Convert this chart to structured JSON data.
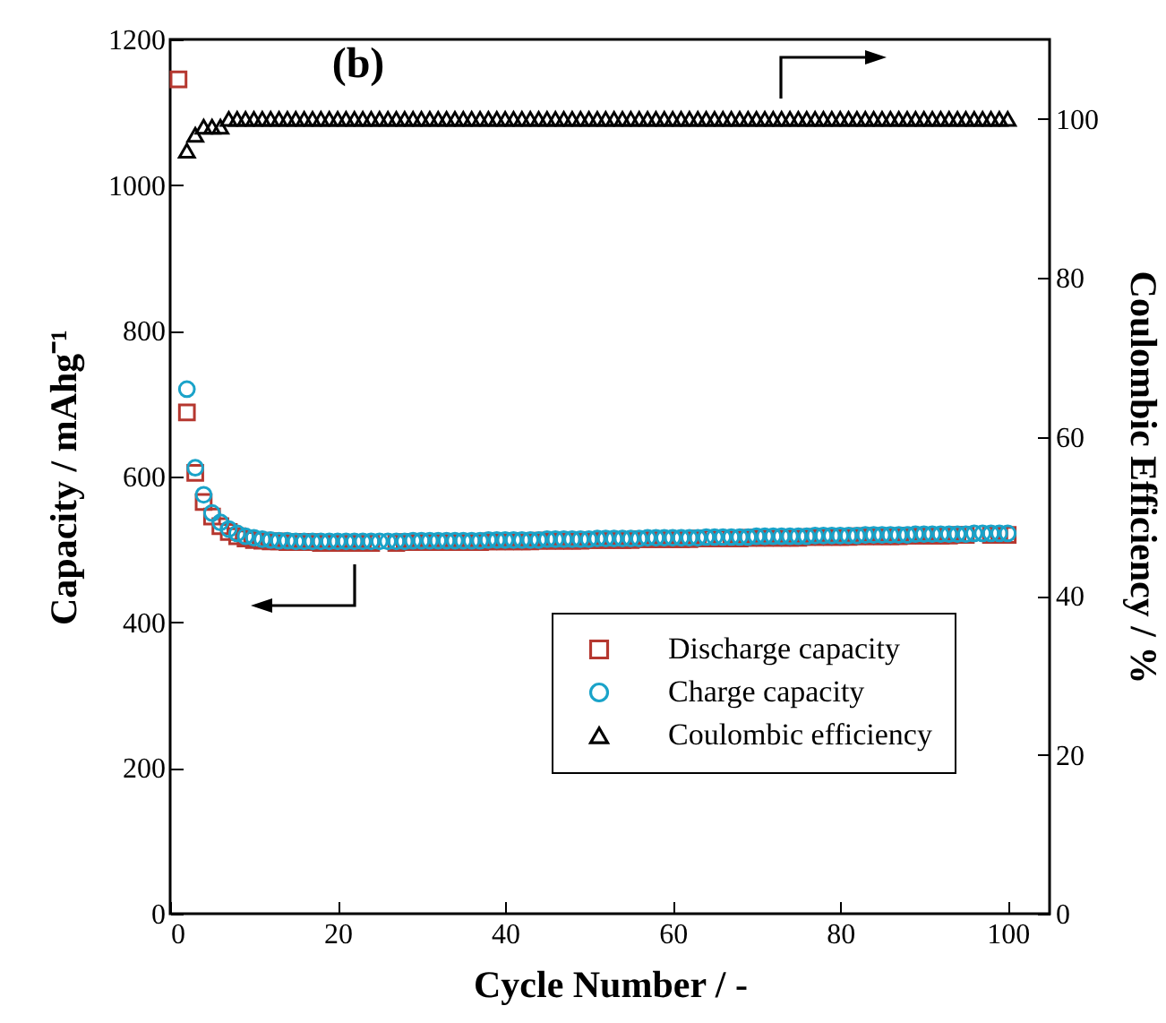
{
  "chart_data": {
    "type": "scatter",
    "xlabel": "Cycle Number / -",
    "ylabel": "Capacity / mAhg⁻¹",
    "y2label": "Coulombic Efficiency / %",
    "annotations": [
      "(b)"
    ],
    "xlim": [
      0,
      105
    ],
    "xticks": [
      0,
      20,
      40,
      60,
      80,
      100
    ],
    "ylim": [
      0,
      1200
    ],
    "yticks": [
      0,
      200,
      400,
      600,
      800,
      1000,
      1200
    ],
    "y2lim": [
      0,
      110
    ],
    "y2ticks": [
      0,
      20,
      40,
      60,
      80,
      100
    ],
    "grid": false,
    "legend": "bottom right",
    "series": [
      {
        "name": "Discharge capacity",
        "color": "#b5372f",
        "marker": "square",
        "x": [
          1,
          2,
          3,
          4,
          5,
          6,
          7,
          8,
          9,
          10,
          11,
          12,
          13,
          14,
          15,
          16,
          17,
          18,
          19,
          20,
          21,
          22,
          23,
          24,
          27,
          28,
          29,
          30,
          31,
          32,
          33,
          34,
          35,
          36,
          37,
          38,
          39,
          40,
          41,
          42,
          43,
          44,
          45,
          46,
          47,
          48,
          49,
          50,
          51,
          52,
          53,
          54,
          55,
          56,
          57,
          58,
          59,
          60,
          61,
          62,
          63,
          64,
          66,
          67,
          68,
          69,
          70,
          71,
          72,
          73,
          74,
          75,
          76,
          77,
          78,
          79,
          80,
          81,
          82,
          83,
          84,
          85,
          86,
          87,
          88,
          89,
          90,
          91,
          92,
          93,
          94,
          95,
          98,
          99,
          100
        ],
        "values": [
          1145,
          688,
          605,
          565,
          545,
          532,
          524,
          518,
          515,
          513,
          512,
          511,
          511,
          510,
          510,
          510,
          510,
          509,
          509,
          509,
          509,
          509,
          509,
          509,
          509,
          510,
          510,
          510,
          510,
          510,
          510,
          510,
          510,
          510,
          510,
          511,
          511,
          511,
          511,
          511,
          511,
          512,
          512,
          512,
          512,
          512,
          512,
          513,
          513,
          513,
          513,
          513,
          513,
          514,
          514,
          514,
          514,
          514,
          514,
          514,
          515,
          515,
          515,
          515,
          515,
          516,
          516,
          516,
          516,
          516,
          516,
          516,
          517,
          517,
          517,
          517,
          517,
          517,
          518,
          518,
          518,
          518,
          518,
          518,
          519,
          519,
          519,
          519,
          519,
          519,
          520,
          520,
          520,
          520,
          520
        ]
      },
      {
        "name": "Charge capacity",
        "color": "#1aa3c9",
        "marker": "circle",
        "x": [
          2,
          3,
          4,
          5,
          6,
          7,
          8,
          9,
          10,
          11,
          12,
          13,
          14,
          15,
          16,
          17,
          18,
          19,
          20,
          21,
          22,
          23,
          24,
          25,
          26,
          27,
          28,
          29,
          30,
          31,
          32,
          33,
          34,
          35,
          36,
          37,
          38,
          39,
          40,
          41,
          42,
          43,
          44,
          45,
          46,
          47,
          48,
          49,
          50,
          51,
          52,
          53,
          54,
          55,
          56,
          57,
          58,
          59,
          60,
          61,
          62,
          63,
          64,
          65,
          66,
          67,
          68,
          69,
          70,
          71,
          72,
          73,
          74,
          75,
          76,
          77,
          78,
          79,
          80,
          81,
          82,
          83,
          84,
          85,
          86,
          87,
          88,
          89,
          90,
          91,
          92,
          93,
          94,
          95,
          96,
          97,
          98,
          99,
          100
        ],
        "values": [
          720,
          612,
          575,
          550,
          537,
          528,
          522,
          518,
          516,
          514,
          513,
          512,
          512,
          511,
          511,
          511,
          511,
          511,
          511,
          511,
          511,
          511,
          511,
          511,
          511,
          511,
          511,
          512,
          512,
          512,
          512,
          512,
          512,
          512,
          512,
          512,
          513,
          513,
          513,
          513,
          513,
          513,
          513,
          514,
          514,
          514,
          514,
          514,
          514,
          515,
          515,
          515,
          515,
          515,
          515,
          516,
          516,
          516,
          516,
          516,
          516,
          516,
          517,
          517,
          517,
          517,
          517,
          517,
          518,
          518,
          518,
          518,
          518,
          518,
          518,
          519,
          519,
          519,
          519,
          519,
          519,
          520,
          520,
          520,
          520,
          520,
          520,
          521,
          521,
          521,
          521,
          521,
          521,
          521,
          522,
          522,
          522,
          522,
          522
        ]
      },
      {
        "name": "Coulombic efficiency",
        "color": "#000000",
        "marker": "triangle",
        "axis": "y2",
        "x": [
          2,
          3,
          4,
          5,
          6,
          7,
          8,
          9,
          10,
          11,
          12,
          13,
          14,
          15,
          16,
          17,
          18,
          19,
          20,
          21,
          22,
          23,
          24,
          25,
          26,
          27,
          28,
          29,
          30,
          31,
          32,
          33,
          34,
          35,
          36,
          37,
          38,
          39,
          40,
          41,
          42,
          43,
          44,
          45,
          46,
          47,
          48,
          49,
          50,
          51,
          52,
          53,
          54,
          55,
          56,
          57,
          58,
          59,
          60,
          61,
          62,
          63,
          64,
          65,
          66,
          67,
          68,
          69,
          70,
          71,
          72,
          73,
          74,
          75,
          76,
          77,
          78,
          79,
          80,
          81,
          82,
          83,
          84,
          85,
          86,
          87,
          88,
          89,
          90,
          91,
          92,
          93,
          94,
          95,
          96,
          97,
          98,
          99,
          100
        ],
        "values": [
          96,
          98,
          99,
          99,
          99,
          100,
          100,
          100,
          100,
          100,
          100,
          100,
          100,
          100,
          100,
          100,
          100,
          100,
          100,
          100,
          100,
          100,
          100,
          100,
          100,
          100,
          100,
          100,
          100,
          100,
          100,
          100,
          100,
          100,
          100,
          100,
          100,
          100,
          100,
          100,
          100,
          100,
          100,
          100,
          100,
          100,
          100,
          100,
          100,
          100,
          100,
          100,
          100,
          100,
          100,
          100,
          100,
          100,
          100,
          100,
          100,
          100,
          100,
          100,
          100,
          100,
          100,
          100,
          100,
          100,
          100,
          100,
          100,
          100,
          100,
          100,
          100,
          100,
          100,
          100,
          100,
          100,
          100,
          100,
          100,
          100,
          100,
          100,
          100,
          100,
          100,
          100,
          100,
          100,
          100,
          100,
          100,
          100,
          100
        ]
      }
    ]
  }
}
